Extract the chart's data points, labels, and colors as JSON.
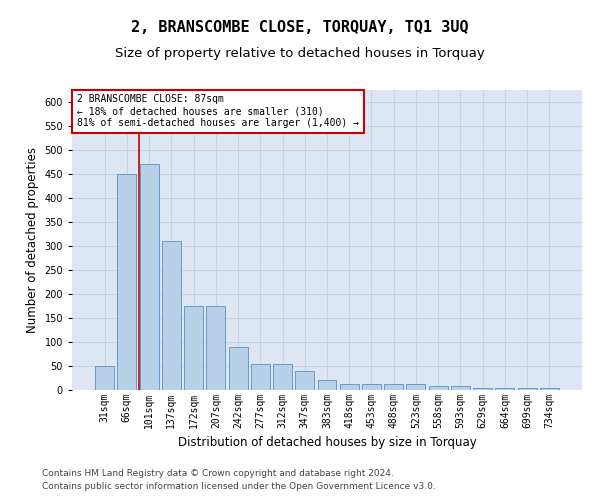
{
  "title1": "2, BRANSCOMBE CLOSE, TORQUAY, TQ1 3UQ",
  "title2": "Size of property relative to detached houses in Torquay",
  "xlabel": "Distribution of detached houses by size in Torquay",
  "ylabel": "Number of detached properties",
  "categories": [
    "31sqm",
    "66sqm",
    "101sqm",
    "137sqm",
    "172sqm",
    "207sqm",
    "242sqm",
    "277sqm",
    "312sqm",
    "347sqm",
    "383sqm",
    "418sqm",
    "453sqm",
    "488sqm",
    "523sqm",
    "558sqm",
    "593sqm",
    "629sqm",
    "664sqm",
    "699sqm",
    "734sqm"
  ],
  "values": [
    50,
    450,
    470,
    310,
    175,
    175,
    90,
    55,
    55,
    40,
    20,
    13,
    13,
    13,
    13,
    8,
    8,
    5,
    5,
    5,
    5
  ],
  "bar_color": "#b8d0e8",
  "bar_edge_color": "#6699cc",
  "red_line_x": 1.55,
  "annotation_text": "2 BRANSCOMBE CLOSE: 87sqm\n← 18% of detached houses are smaller (310)\n81% of semi-detached houses are larger (1,400) →",
  "annotation_box_color": "#ffffff",
  "annotation_box_edge": "#cc0000",
  "grid_color": "#c8d4e4",
  "background_color": "#dde6f2",
  "footer1": "Contains HM Land Registry data © Crown copyright and database right 2024.",
  "footer2": "Contains public sector information licensed under the Open Government Licence v3.0.",
  "ylim": [
    0,
    625
  ],
  "yticks": [
    0,
    50,
    100,
    150,
    200,
    250,
    300,
    350,
    400,
    450,
    500,
    550,
    600
  ],
  "title_fontsize": 11,
  "subtitle_fontsize": 9.5,
  "tick_fontsize": 7,
  "ylabel_fontsize": 8.5,
  "xlabel_fontsize": 8.5,
  "footer_fontsize": 6.5
}
